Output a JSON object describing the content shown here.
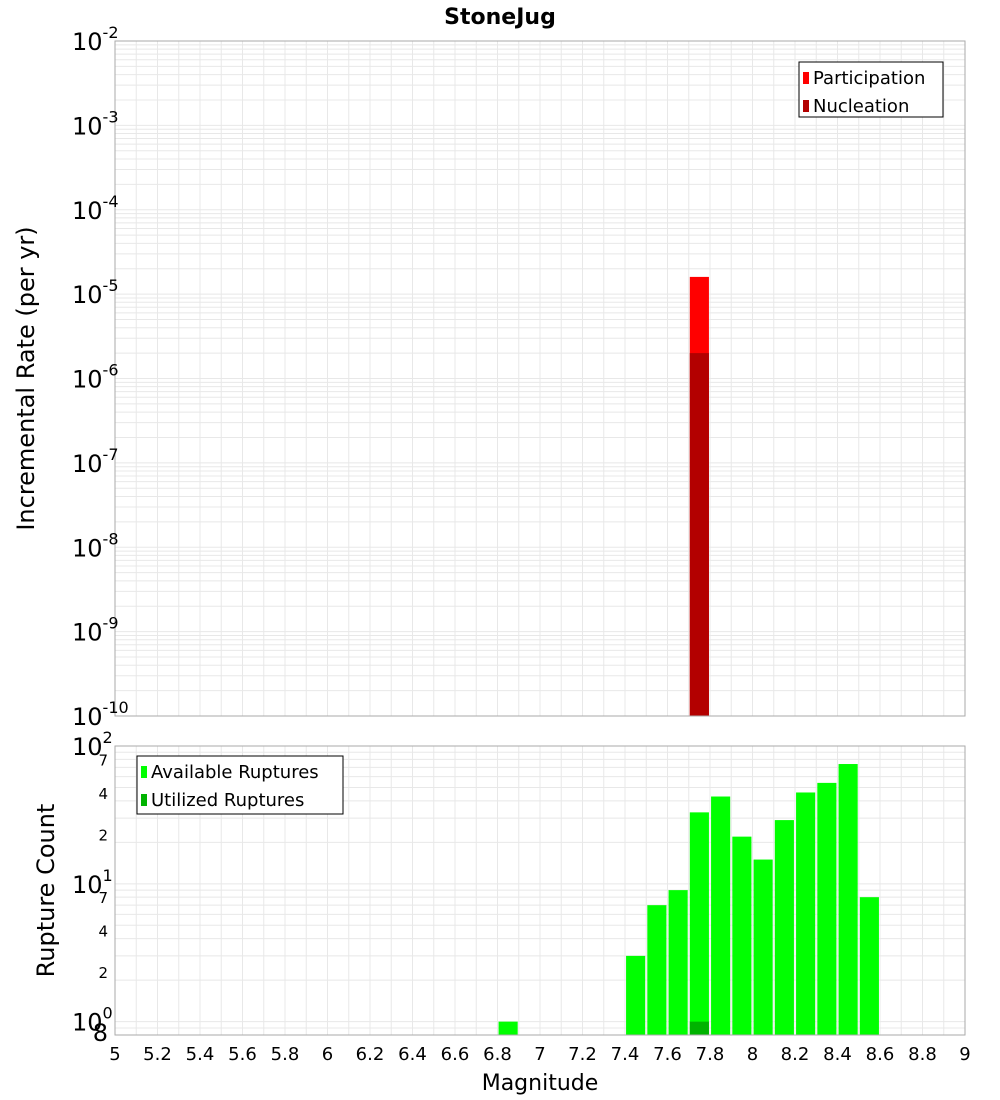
{
  "colors": {
    "participation": "#ff0000",
    "nucleation": "#b30000",
    "available": "#00ff00",
    "utilized": "#00b300",
    "grid": "#e8e8e8",
    "frame": "#aaaaaa"
  },
  "chart_data": [
    {
      "type": "bar",
      "title": "StoneJug",
      "xlabel": "Magnitude",
      "ylabel": "Incremental Rate (per yr)",
      "xlim": [
        5,
        9
      ],
      "ylim": [
        1e-10,
        0.01
      ],
      "yscale": "log",
      "grid": true,
      "legend_position": "top-right",
      "series": [
        {
          "name": "Participation",
          "color": "#ff0000",
          "points": [
            {
              "x": 7.75,
              "y": 1.6e-05
            }
          ]
        },
        {
          "name": "Nucleation",
          "color": "#b30000",
          "points": [
            {
              "x": 7.75,
              "y": 2e-06
            }
          ]
        }
      ],
      "y_ticks": [
        {
          "base": "10",
          "exp": "-2"
        },
        {
          "base": "10",
          "exp": "-3"
        },
        {
          "base": "10",
          "exp": "-4"
        },
        {
          "base": "10",
          "exp": "-5"
        },
        {
          "base": "10",
          "exp": "-6"
        },
        {
          "base": "10",
          "exp": "-7"
        },
        {
          "base": "10",
          "exp": "-8"
        },
        {
          "base": "10",
          "exp": "-9"
        },
        {
          "base": "10",
          "exp": "-10"
        }
      ]
    },
    {
      "type": "bar",
      "xlabel": "Magnitude",
      "ylabel": "Rupture Count",
      "xlim": [
        5,
        9
      ],
      "ylim": [
        0.8,
        100
      ],
      "yscale": "log",
      "grid": true,
      "legend_position": "top-left",
      "series": [
        {
          "name": "Available Ruptures",
          "color": "#00ff00",
          "points": [
            {
              "x": 6.85,
              "y": 1
            },
            {
              "x": 7.45,
              "y": 3
            },
            {
              "x": 7.55,
              "y": 7
            },
            {
              "x": 7.65,
              "y": 9
            },
            {
              "x": 7.75,
              "y": 33
            },
            {
              "x": 7.85,
              "y": 43
            },
            {
              "x": 7.95,
              "y": 22
            },
            {
              "x": 8.05,
              "y": 15
            },
            {
              "x": 8.15,
              "y": 29
            },
            {
              "x": 8.25,
              "y": 46
            },
            {
              "x": 8.35,
              "y": 54
            },
            {
              "x": 8.45,
              "y": 74
            },
            {
              "x": 8.55,
              "y": 8
            }
          ]
        },
        {
          "name": "Utilized Ruptures",
          "color": "#00b300",
          "points": [
            {
              "x": 7.75,
              "y": 1
            }
          ]
        }
      ],
      "decade_ticks": [
        {
          "value": 1,
          "base": "10",
          "exp": "0"
        },
        {
          "value": 10,
          "base": "10",
          "exp": "1"
        },
        {
          "value": 100,
          "base": "10",
          "exp": "2"
        }
      ],
      "minor_tick_labels": [
        {
          "value": 0.8,
          "label": "8"
        },
        {
          "value": 2,
          "label": "2"
        },
        {
          "value": 4,
          "label": "4"
        },
        {
          "value": 7,
          "label": "7"
        },
        {
          "value": 20,
          "label": "2"
        },
        {
          "value": 40,
          "label": "4"
        },
        {
          "value": 70,
          "label": "7"
        }
      ]
    }
  ],
  "x_ticks": [
    "5",
    "5.2",
    "5.4",
    "5.6",
    "5.8",
    "6",
    "6.2",
    "6.4",
    "6.6",
    "6.8",
    "7",
    "7.2",
    "7.4",
    "7.6",
    "7.8",
    "8",
    "8.2",
    "8.4",
    "8.6",
    "8.8",
    "9"
  ]
}
